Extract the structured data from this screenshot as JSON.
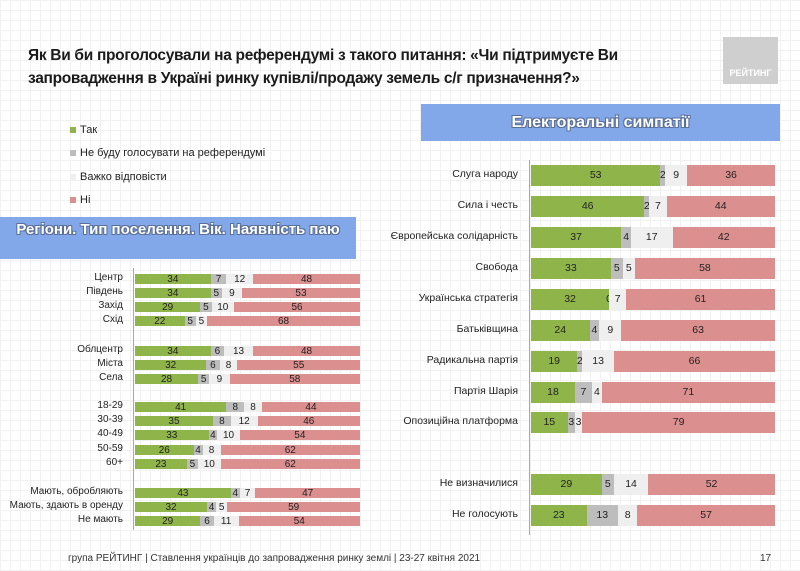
{
  "header": {
    "title": "Як Ви би проголосували на референдумі з такого питання: «Чи підтримуєте Ви запровадження в Україні ринку купівлі/продажу земель с/г призначення?»",
    "logo": "РЕЙТИНГ"
  },
  "legend": [
    {
      "label": "Так",
      "color": "#8fb54a"
    },
    {
      "label": "Не буду голосувати на референдумі",
      "color": "#bdbdbd"
    },
    {
      "label": "Важко відповісти",
      "color": "#efefef"
    },
    {
      "label": "Ні",
      "color": "#dc8f8f"
    }
  ],
  "footer": {
    "text": "група РЕЙТИНГ | Ставлення українців до запровадження ринку землі  | 23-27 квітня 2021",
    "page": "17"
  },
  "chart_data": [
    {
      "type": "bar",
      "stacked": true,
      "orientation": "horizontal",
      "title": "Регіони. Тип поселення. Вік. Наявність паю",
      "series": [
        "Так",
        "Не буду голосувати на референдумі",
        "Важко відповісти",
        "Ні"
      ],
      "rows": [
        {
          "label": "Центр",
          "values": [
            34,
            7,
            12,
            48
          ]
        },
        {
          "label": "Південь",
          "values": [
            34,
            5,
            9,
            53
          ]
        },
        {
          "label": "Захід",
          "values": [
            29,
            5,
            10,
            56
          ]
        },
        {
          "label": "Схід",
          "values": [
            22,
            5,
            5,
            68
          ]
        },
        {
          "label": "Облцентр",
          "values": [
            34,
            6,
            13,
            48
          ]
        },
        {
          "label": "Міста",
          "values": [
            32,
            6,
            8,
            55
          ]
        },
        {
          "label": "Села",
          "values": [
            28,
            5,
            9,
            58
          ]
        },
        {
          "label": "18-29",
          "values": [
            41,
            8,
            8,
            44
          ]
        },
        {
          "label": "30-39",
          "values": [
            35,
            8,
            12,
            46
          ]
        },
        {
          "label": "40-49",
          "values": [
            33,
            4,
            10,
            54
          ]
        },
        {
          "label": "50-59",
          "values": [
            26,
            4,
            8,
            62
          ]
        },
        {
          "label": "60+",
          "values": [
            23,
            5,
            10,
            62
          ]
        },
        {
          "label": "Мають, обробляють",
          "values": [
            43,
            4,
            7,
            47
          ]
        },
        {
          "label": "Мають, здають в оренду",
          "values": [
            32,
            4,
            5,
            59
          ]
        },
        {
          "label": "Не мають",
          "values": [
            29,
            6,
            11,
            54
          ]
        }
      ]
    },
    {
      "type": "bar",
      "stacked": true,
      "orientation": "horizontal",
      "title": "Електоральні симпатії",
      "series": [
        "Так",
        "Не буду голосувати на референдумі",
        "Важко відповісти",
        "Ні"
      ],
      "rows": [
        {
          "label": "Слуга народу",
          "values": [
            53,
            2,
            9,
            36
          ]
        },
        {
          "label": "Сила і честь",
          "values": [
            46,
            2,
            7,
            44
          ]
        },
        {
          "label": "Європейська солідарність",
          "values": [
            37,
            4,
            17,
            42
          ]
        },
        {
          "label": "Свобода",
          "values": [
            33,
            5,
            5,
            58
          ]
        },
        {
          "label": "Українська стратегія",
          "values": [
            32,
            0,
            7,
            61
          ]
        },
        {
          "label": "Батьківщина",
          "values": [
            24,
            4,
            9,
            63
          ]
        },
        {
          "label": "Радикальна партія",
          "values": [
            19,
            2,
            13,
            66
          ]
        },
        {
          "label": "Партія Шарія",
          "values": [
            18,
            7,
            4,
            71
          ]
        },
        {
          "label": "Опозиційна платформа",
          "values": [
            15,
            3,
            3,
            79
          ]
        },
        {
          "label": "Не визначилися",
          "values": [
            29,
            5,
            14,
            52
          ]
        },
        {
          "label": "Не голосують",
          "values": [
            23,
            13,
            8,
            57
          ]
        }
      ]
    }
  ]
}
